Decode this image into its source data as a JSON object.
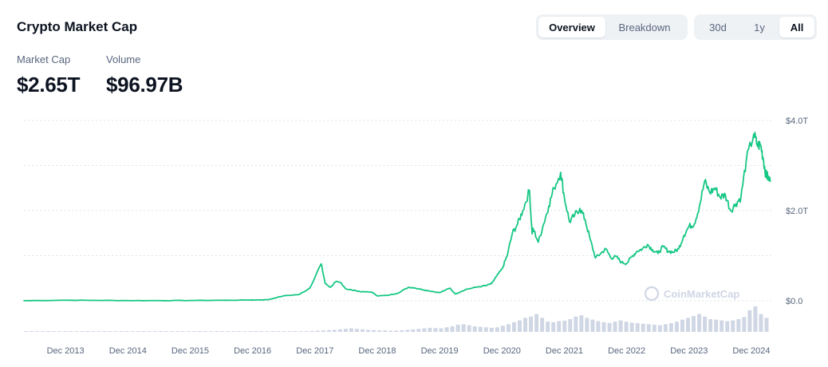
{
  "header": {
    "title": "Crypto Market Cap",
    "view_tabs": [
      {
        "label": "Overview",
        "active": true
      },
      {
        "label": "Breakdown",
        "active": false
      }
    ],
    "range_tabs": [
      {
        "label": "30d",
        "active": false
      },
      {
        "label": "1y",
        "active": false
      },
      {
        "label": "All",
        "active": true
      }
    ]
  },
  "stats": {
    "market_cap": {
      "label": "Market Cap",
      "value": "$2.65T"
    },
    "volume": {
      "label": "Volume",
      "value": "$96.97B"
    }
  },
  "watermark": "CoinMarketCap",
  "colors": {
    "line": "#16c784",
    "volume": "#cfd6e4",
    "grid": "#dfe3ea",
    "text_muted": "#58667e"
  },
  "chart_data": {
    "type": "line",
    "title": "",
    "xlabel": "",
    "ylabel": "",
    "x_tick_labels": [
      "Dec 2013",
      "Dec 2014",
      "Dec 2015",
      "Dec 2016",
      "Dec 2017",
      "Dec 2018",
      "Dec 2019",
      "Dec 2020",
      "Dec 2021",
      "Dec 2022",
      "Dec 2023",
      "Dec 2024"
    ],
    "y_tick_labels": [
      "$4.0T",
      "$2.0T",
      "$0.0"
    ],
    "y_ticks": [
      4.0,
      2.0,
      0.0
    ],
    "ylim": [
      0,
      4.0
    ],
    "x_range": [
      "2013-04",
      "2025-01"
    ],
    "grid": true,
    "series": [
      {
        "unit": "trillion USD",
        "points": [
          [
            "2013-04",
            0.002
          ],
          [
            "2013-12",
            0.013
          ],
          [
            "2014-06",
            0.009
          ],
          [
            "2014-12",
            0.005
          ],
          [
            "2015-06",
            0.004
          ],
          [
            "2015-12",
            0.006
          ],
          [
            "2016-06",
            0.011
          ],
          [
            "2016-12",
            0.017
          ],
          [
            "2017-03",
            0.025
          ],
          [
            "2017-06",
            0.11
          ],
          [
            "2017-09",
            0.14
          ],
          [
            "2017-11",
            0.28
          ],
          [
            "2018-01-07",
            0.82
          ],
          [
            "2018-02",
            0.38
          ],
          [
            "2018-03",
            0.3
          ],
          [
            "2018-04",
            0.42
          ],
          [
            "2018-05",
            0.4
          ],
          [
            "2018-06",
            0.26
          ],
          [
            "2018-08",
            0.22
          ],
          [
            "2018-09",
            0.2
          ],
          [
            "2018-11",
            0.19
          ],
          [
            "2018-12",
            0.11
          ],
          [
            "2019-02",
            0.12
          ],
          [
            "2019-04",
            0.17
          ],
          [
            "2019-06",
            0.3
          ],
          [
            "2019-07",
            0.29
          ],
          [
            "2019-09",
            0.24
          ],
          [
            "2019-10",
            0.22
          ],
          [
            "2019-12",
            0.18
          ],
          [
            "2020-02",
            0.28
          ],
          [
            "2020-03",
            0.15
          ],
          [
            "2020-05",
            0.25
          ],
          [
            "2020-07",
            0.3
          ],
          [
            "2020-09",
            0.34
          ],
          [
            "2020-10",
            0.38
          ],
          [
            "2020-11",
            0.55
          ],
          [
            "2020-12",
            0.7
          ],
          [
            "2021-01",
            1.0
          ],
          [
            "2021-02",
            1.5
          ],
          [
            "2021-03",
            1.7
          ],
          [
            "2021-04",
            2.0
          ],
          [
            "2021-05-10",
            2.45
          ],
          [
            "2021-05-25",
            1.5
          ],
          [
            "2021-06",
            1.6
          ],
          [
            "2021-07",
            1.3
          ],
          [
            "2021-08",
            1.7
          ],
          [
            "2021-09",
            2.1
          ],
          [
            "2021-10",
            2.5
          ],
          [
            "2021-11-10",
            2.85
          ],
          [
            "2021-12",
            2.3
          ],
          [
            "2022-01",
            1.75
          ],
          [
            "2022-02",
            1.9
          ],
          [
            "2022-03",
            2.05
          ],
          [
            "2022-04",
            1.8
          ],
          [
            "2022-05",
            1.35
          ],
          [
            "2022-06",
            0.95
          ],
          [
            "2022-07",
            1.05
          ],
          [
            "2022-08",
            1.15
          ],
          [
            "2022-09",
            0.95
          ],
          [
            "2022-10",
            0.98
          ],
          [
            "2022-11",
            0.85
          ],
          [
            "2022-12",
            0.83
          ],
          [
            "2023-01",
            0.98
          ],
          [
            "2023-02",
            1.1
          ],
          [
            "2023-03",
            1.15
          ],
          [
            "2023-04",
            1.25
          ],
          [
            "2023-05",
            1.13
          ],
          [
            "2023-06",
            1.05
          ],
          [
            "2023-07",
            1.2
          ],
          [
            "2023-08",
            1.1
          ],
          [
            "2023-09",
            1.08
          ],
          [
            "2023-10",
            1.15
          ],
          [
            "2023-11",
            1.45
          ],
          [
            "2023-12",
            1.65
          ],
          [
            "2024-01",
            1.7
          ],
          [
            "2024-02",
            2.1
          ],
          [
            "2024-03",
            2.65
          ],
          [
            "2024-04",
            2.4
          ],
          [
            "2024-05",
            2.5
          ],
          [
            "2024-06",
            2.3
          ],
          [
            "2024-07",
            2.35
          ],
          [
            "2024-08",
            2.0
          ],
          [
            "2024-09",
            2.15
          ],
          [
            "2024-10",
            2.3
          ],
          [
            "2024-11",
            3.1
          ],
          [
            "2024-12-15",
            3.7
          ],
          [
            "2025-01-05",
            3.45
          ],
          [
            "2025-01-25",
            3.45
          ],
          [
            "2025-02-10",
            3.15
          ],
          [
            "2025-02-25",
            2.8
          ],
          [
            "2025-03-05",
            2.75
          ],
          [
            "2025-03-20",
            2.65
          ]
        ]
      }
    ],
    "volume_bars": {
      "unit": "relative",
      "start": "2013-04",
      "end": "2025-03-20",
      "values": [
        0.02,
        0.02,
        0.02,
        0.02,
        0.02,
        0.02,
        0.02,
        0.02,
        0.02,
        0.02,
        0.02,
        0.02,
        0.02,
        0.02,
        0.02,
        0.02,
        0.02,
        0.02,
        0.02,
        0.02,
        0.02,
        0.02,
        0.02,
        0.02,
        0.02,
        0.02,
        0.02,
        0.02,
        0.02,
        0.02,
        0.02,
        0.02,
        0.02,
        0.02,
        0.02,
        0.02,
        0.02,
        0.02,
        0.02,
        0.02,
        0.02,
        0.02,
        0.02,
        0.02,
        0.02,
        0.02,
        0.02,
        0.02,
        0.02,
        0.02,
        0.03,
        0.04,
        0.05,
        0.06,
        0.07,
        0.08,
        0.1,
        0.12,
        0.14,
        0.12,
        0.1,
        0.08,
        0.07,
        0.06,
        0.06,
        0.05,
        0.05,
        0.06,
        0.08,
        0.1,
        0.12,
        0.14,
        0.16,
        0.15,
        0.14,
        0.18,
        0.22,
        0.28,
        0.3,
        0.26,
        0.22,
        0.2,
        0.18,
        0.16,
        0.18,
        0.24,
        0.3,
        0.38,
        0.45,
        0.55,
        0.6,
        0.7,
        0.55,
        0.4,
        0.38,
        0.42,
        0.44,
        0.5,
        0.6,
        0.65,
        0.55,
        0.48,
        0.42,
        0.38,
        0.35,
        0.4,
        0.45,
        0.4,
        0.36,
        0.34,
        0.32,
        0.3,
        0.28,
        0.26,
        0.3,
        0.34,
        0.4,
        0.48,
        0.55,
        0.62,
        0.7,
        0.6,
        0.5,
        0.48,
        0.45,
        0.42,
        0.45,
        0.5,
        0.58,
        0.85,
        1.0,
        0.7,
        0.55
      ]
    }
  },
  "ui": {
    "selected_view": "Overview",
    "selected_range": "All"
  }
}
